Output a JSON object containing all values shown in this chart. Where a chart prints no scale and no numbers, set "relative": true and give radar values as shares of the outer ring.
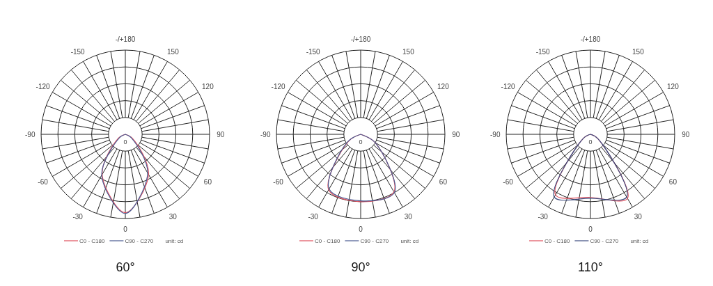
{
  "chart_data": [
    {
      "type": "radar",
      "title": "60°",
      "relative": true,
      "grid": true,
      "legend": "bottom",
      "line_style": "solid",
      "marker": "none",
      "categories": [
        "-/+180",
        "150",
        "120",
        "90",
        "60",
        "30",
        "0",
        "-30",
        "-60",
        "-90",
        "-120",
        "-150"
      ],
      "annotations": [
        "0",
        "unit: cd"
      ],
      "series": [
        {
          "name": "C0 - C180",
          "color": "#e0505e",
          "values": [
            0,
            0,
            0,
            0,
            0.1,
            0.55,
            0.93,
            0.55,
            0.1,
            0,
            0,
            0
          ]
        },
        {
          "name": "C90 - C270",
          "color": "#4a5a92",
          "values": [
            0,
            0,
            0,
            0,
            0.08,
            0.53,
            0.94,
            0.56,
            0.08,
            0,
            0,
            0
          ]
        }
      ]
    },
    {
      "type": "radar",
      "title": "90°",
      "relative": true,
      "grid": true,
      "legend": "bottom",
      "line_style": "solid",
      "marker": "none",
      "categories": [
        "-/+180",
        "150",
        "120",
        "90",
        "60",
        "30",
        "0",
        "-30",
        "-60",
        "-90",
        "-120",
        "-150"
      ],
      "annotations": [
        "0",
        "unit: cd"
      ],
      "series": [
        {
          "name": "C0 - C180",
          "color": "#e0505e",
          "values": [
            0,
            0,
            0,
            0,
            0.2,
            0.79,
            0.8,
            0.76,
            0.17,
            0,
            0,
            0
          ]
        },
        {
          "name": "C90 - C270",
          "color": "#4a5a92",
          "values": [
            0,
            0,
            0,
            0,
            0.2,
            0.8,
            0.79,
            0.75,
            0.18,
            0,
            0,
            0
          ]
        }
      ]
    },
    {
      "type": "radar",
      "title": "110°",
      "relative": true,
      "grid": true,
      "legend": "bottom",
      "line_style": "solid",
      "marker": "none",
      "categories": [
        "-/+180",
        "150",
        "120",
        "90",
        "60",
        "30",
        "0",
        "-30",
        "-60",
        "-90",
        "-120",
        "-150"
      ],
      "annotations": [
        "0",
        "unit: cd"
      ],
      "series": [
        {
          "name": "C0 - C180",
          "color": "#e0505e",
          "values": [
            0,
            0,
            0,
            0,
            0.1,
            0.88,
            0.75,
            0.83,
            0.1,
            0,
            0,
            0
          ]
        },
        {
          "name": "C90 - C270",
          "color": "#3e4d80",
          "values": [
            0,
            0,
            0,
            0,
            0.1,
            0.86,
            0.76,
            0.86,
            0.1,
            0,
            0,
            0
          ]
        }
      ]
    }
  ]
}
